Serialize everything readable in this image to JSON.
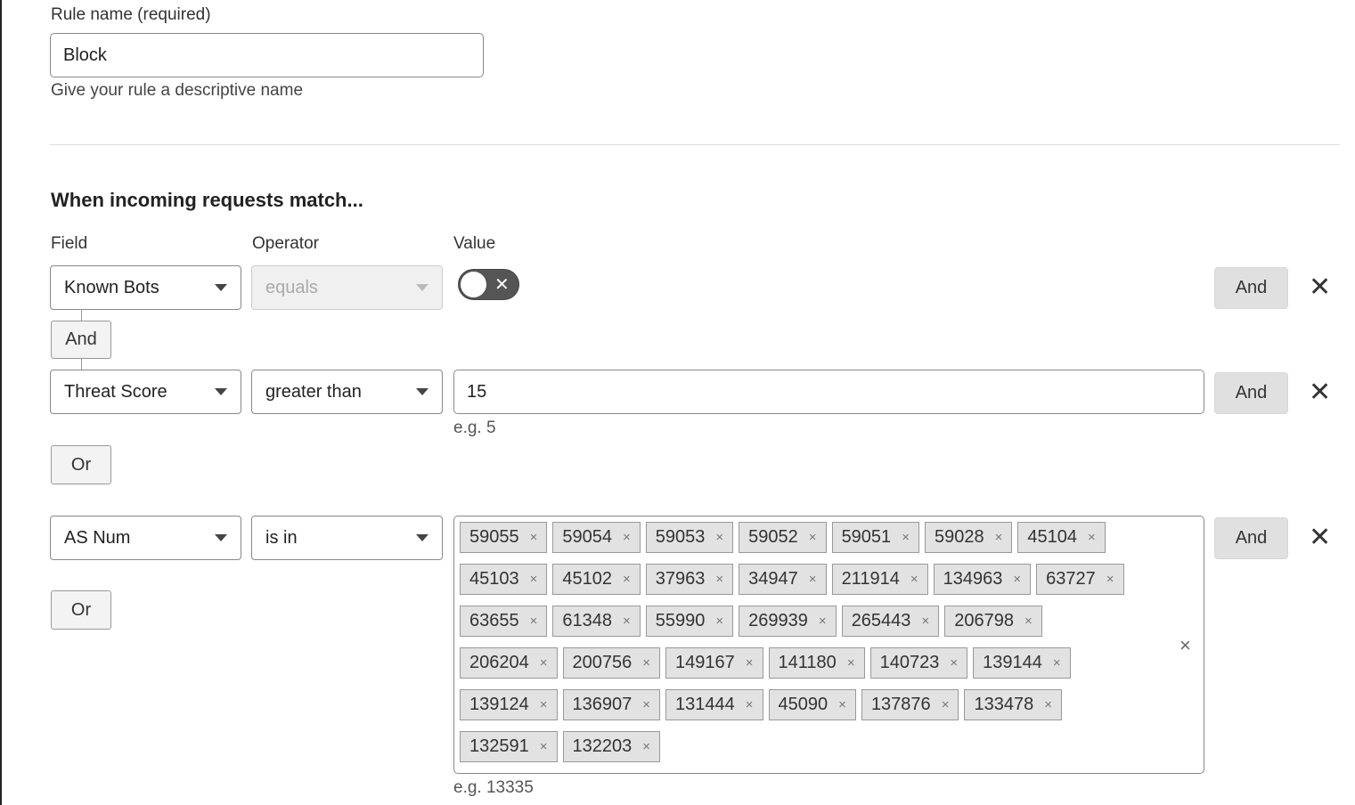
{
  "rule_name": {
    "label": "Rule name (required)",
    "value": "Block",
    "help": "Give your rule a descriptive name"
  },
  "section_title": "When incoming requests match...",
  "columns": {
    "field": "Field",
    "operator": "Operator",
    "value": "Value"
  },
  "rows": [
    {
      "field": "Known Bots",
      "operator": "equals",
      "toggle": false
    },
    {
      "connector": "And"
    },
    {
      "field": "Threat Score",
      "operator": "greater than",
      "value": "15",
      "hint": "e.g. 5"
    },
    {
      "or": "Or"
    },
    {
      "field": "AS Num",
      "operator": "is in",
      "hint": "e.g. 13335",
      "or": "Or",
      "tag_rows": [
        [
          "59055",
          "59054",
          "59053",
          "59052",
          "59051",
          "59028",
          "45104"
        ],
        [
          "45103",
          "45102",
          "37963",
          "34947",
          "211914",
          "134963",
          "63727"
        ],
        [
          "63655",
          "61348",
          "55990",
          "269939",
          "265443",
          "206798"
        ],
        [
          "206204",
          "200756",
          "149167",
          "141180",
          "140723",
          "139144"
        ],
        [
          "139124",
          "136907",
          "131444",
          "45090",
          "137876",
          "133478"
        ],
        [
          "132591",
          "132203"
        ]
      ]
    }
  ],
  "and_label": "And",
  "remove_icon": "close-icon",
  "tag_remove": "×",
  "close_glyph": "✕"
}
